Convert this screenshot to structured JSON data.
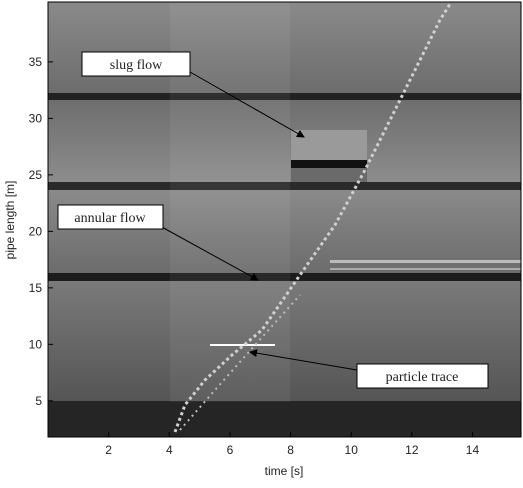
{
  "chart_data": {
    "type": "image",
    "xlabel": "time [s]",
    "ylabel": "pipe length [m]",
    "xlim": [
      0,
      15.6
    ],
    "ylim": [
      1.8,
      40.3
    ],
    "xticks": [
      2,
      4,
      6,
      8,
      10,
      12,
      14
    ],
    "yticks": [
      5,
      10,
      15,
      20,
      25,
      30,
      35
    ],
    "annotations": [
      "slug flow",
      "annular flow",
      "particle trace"
    ]
  }
}
